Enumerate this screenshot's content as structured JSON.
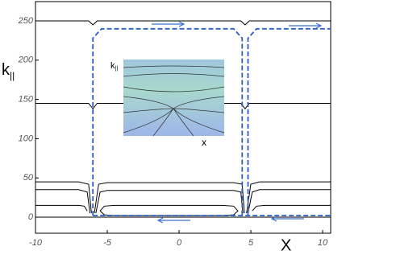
{
  "chart_data": {
    "type": "line",
    "xlabel": "X",
    "ylabel": "k",
    "ylabel_sub": "||",
    "xlim": [
      -10,
      10.56
    ],
    "ylim": [
      -20.5,
      274.6
    ],
    "xticks": [
      -10,
      -5,
      0,
      5,
      10
    ],
    "yticks": [
      0,
      50,
      100,
      150,
      200,
      250
    ],
    "series": [
      {
        "color": "#000000",
        "x": [
          -10,
          -6.3,
          -6,
          -5.7,
          4.3,
          4.6,
          4.9,
          10.56
        ],
        "values": [
          250,
          250,
          245,
          250,
          250,
          245,
          250,
          250
        ]
      },
      {
        "color": "#000000",
        "x": [
          -10,
          -6.3,
          -6,
          -5.7,
          4.3,
          4.6,
          4.9,
          10.56
        ],
        "values": [
          145,
          145,
          138,
          145,
          145,
          138,
          145,
          145
        ]
      },
      {
        "color": "#000000",
        "x": [
          -10,
          -7,
          -6.3,
          -6.1,
          -6,
          -5.9,
          -5.6,
          -5,
          3.8,
          4.4,
          4.55,
          4.6,
          4.7,
          5,
          5.6,
          10.56
        ],
        "values": [
          45,
          45,
          42,
          5,
          null,
          5,
          42,
          44,
          44,
          42,
          5,
          null,
          5,
          42,
          45,
          45
        ]
      },
      {
        "color": "#000000",
        "x": [
          -10,
          -7,
          -6.4,
          -6.2,
          -6,
          -5.8,
          -5.5,
          -5,
          3.8,
          4.3,
          4.45,
          4.6,
          4.8,
          5.1,
          5.6,
          10.56
        ],
        "values": [
          35,
          35,
          32,
          5,
          null,
          5,
          32,
          34,
          34,
          32,
          5,
          null,
          5,
          32,
          35,
          35
        ]
      },
      {
        "color": "#000000",
        "x": [
          -5.5,
          -5.2,
          -4.5,
          3,
          3.8,
          4.1,
          3.8,
          3,
          -4.5,
          -5.2,
          -5.5
        ],
        "values": [
          8,
          14,
          15,
          15,
          14,
          8,
          3,
          2,
          2,
          3,
          8
        ]
      },
      {
        "color": "#000000",
        "x": [
          5.1,
          5.4,
          6,
          10.56
        ],
        "values": [
          8,
          14,
          15,
          15
        ]
      },
      {
        "color": "#000000",
        "x": [
          -10,
          -7,
          -6.6,
          -6.4
        ],
        "values": [
          15,
          15,
          14,
          8
        ]
      },
      {
        "color": "#000000",
        "x": [
          -10,
          10.56
        ],
        "values": [
          0,
          0
        ]
      },
      {
        "color": "#2c5fc4",
        "dash": true,
        "x": [
          -6,
          -6,
          -5.4,
          3.8,
          4.4,
          4.4,
          4.6,
          4.8,
          4.8,
          5.4,
          10.56,
          10.56,
          -6,
          10.56
        ],
        "values": [
          2,
          228,
          240,
          240,
          228,
          2,
          null,
          2,
          228,
          240,
          240,
          null,
          2,
          2
        ]
      }
    ],
    "inset": {
      "ylabel": "k",
      "ylabel_sub": "||",
      "xlabel": "x"
    }
  }
}
